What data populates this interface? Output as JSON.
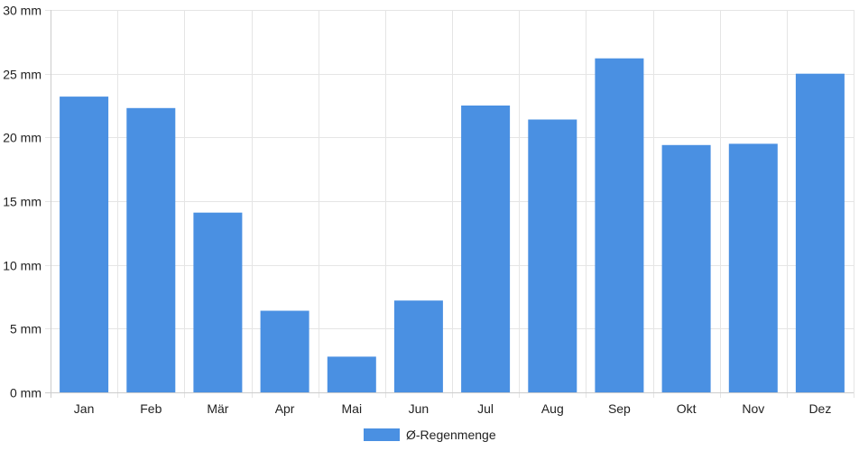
{
  "chart_data": {
    "type": "bar",
    "categories": [
      "Jan",
      "Feb",
      "Mär",
      "Apr",
      "Mai",
      "Jun",
      "Jul",
      "Aug",
      "Sep",
      "Okt",
      "Nov",
      "Dez"
    ],
    "series": [
      {
        "name": "Ø-Regenmenge",
        "values": [
          23.2,
          22.3,
          14.1,
          6.4,
          2.8,
          7.2,
          22.5,
          21.4,
          26.2,
          19.4,
          19.5,
          25.0
        ],
        "color": "#4a90e2"
      }
    ],
    "y_ticks": [
      "0 mm",
      "5 mm",
      "10 mm",
      "15 mm",
      "20 mm",
      "25 mm",
      "30 mm"
    ],
    "ylim": [
      0,
      30
    ],
    "y_unit": "mm",
    "grid": true,
    "legend_position": "bottom-center",
    "colors": {
      "bar": "#4a90e2",
      "grid": "#e5e5e5",
      "axis": "#cccccc",
      "text": "#222222"
    }
  }
}
